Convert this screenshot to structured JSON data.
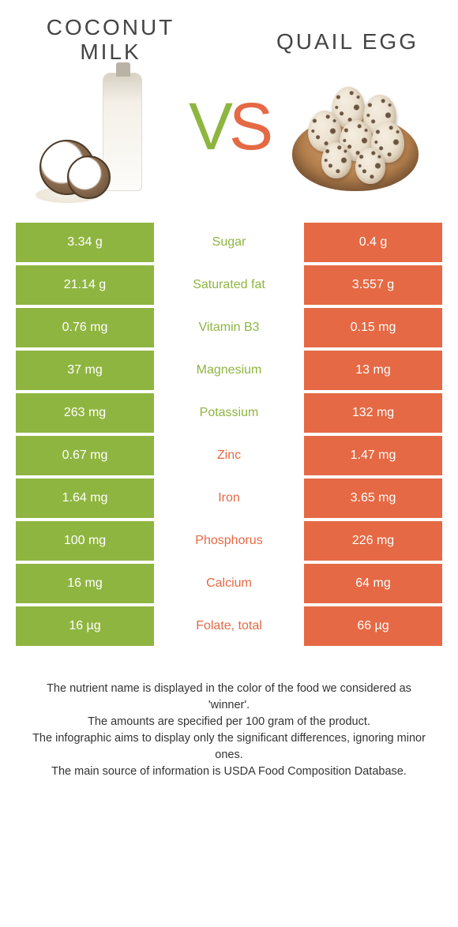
{
  "colors": {
    "left": "#8fb541",
    "right": "#e56944",
    "background": "#ffffff",
    "text": "#333333"
  },
  "header": {
    "left_food": "Coconut milk",
    "right_food": "Quail egg",
    "vs_v": "V",
    "vs_s": "S"
  },
  "table": {
    "rows": [
      {
        "left": "3.34 g",
        "label": "Sugar",
        "right": "0.4 g",
        "winner": "left"
      },
      {
        "left": "21.14 g",
        "label": "Saturated fat",
        "right": "3.557 g",
        "winner": "left"
      },
      {
        "left": "0.76 mg",
        "label": "Vitamin B3",
        "right": "0.15 mg",
        "winner": "left"
      },
      {
        "left": "37 mg",
        "label": "Magnesium",
        "right": "13 mg",
        "winner": "left"
      },
      {
        "left": "263 mg",
        "label": "Potassium",
        "right": "132 mg",
        "winner": "left"
      },
      {
        "left": "0.67 mg",
        "label": "Zinc",
        "right": "1.47 mg",
        "winner": "right"
      },
      {
        "left": "1.64 mg",
        "label": "Iron",
        "right": "3.65 mg",
        "winner": "right"
      },
      {
        "left": "100 mg",
        "label": "Phosphorus",
        "right": "226 mg",
        "winner": "right"
      },
      {
        "left": "16 mg",
        "label": "Calcium",
        "right": "64 mg",
        "winner": "right"
      },
      {
        "left": "16 µg",
        "label": "Folate, total",
        "right": "66 µg",
        "winner": "right"
      }
    ]
  },
  "footer": {
    "line1": "The nutrient name is displayed in the color of the food we considered as 'winner'.",
    "line2": "The amounts are specified per 100 gram of the product.",
    "line3": "The infographic aims to display only the significant differences, ignoring minor ones.",
    "line4": "The main source of information is USDA Food Composition Database."
  }
}
